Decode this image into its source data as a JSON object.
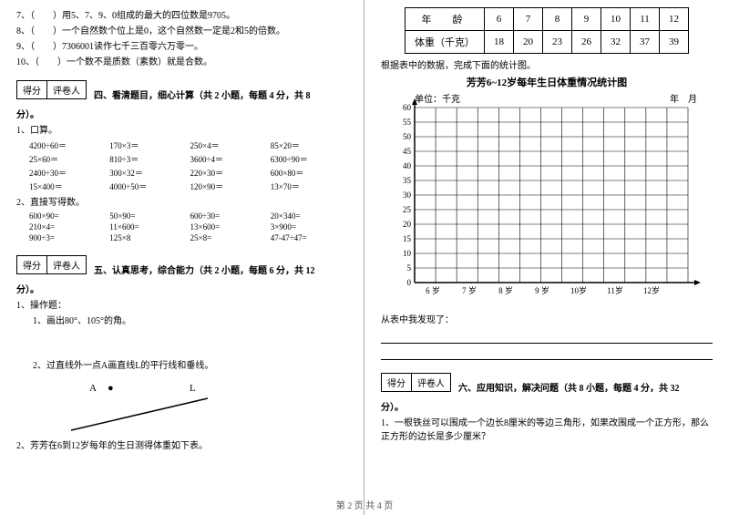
{
  "left": {
    "q7": "7、（　　）用5、7、9、0组成的最大的四位数是9705。",
    "q8": "8、（　　）一个自然数个位上是0，这个自然数一定是2和5的倍数。",
    "q9": "9、（　　）7306001读作七千三百零六万零一。",
    "q10": "10、（　　）一个数不是质数（素数）就是合数。",
    "score_a": "得分",
    "score_b": "评卷人",
    "sec4": "四、看清题目，细心计算（共 2 小题，每题 4 分，共 8",
    "sec4b": "分）。",
    "p1": "1、口算。",
    "calc1": [
      "4200÷60＝",
      "170×3＝",
      "250×4＝",
      "85×20＝",
      "25×60＝",
      "810÷3＝",
      "3600÷4＝",
      "6300÷90＝",
      "2400÷30＝",
      "300×32＝",
      "220×30＝",
      "600×80＝",
      "15×400＝",
      "4000÷50＝",
      "120×90＝",
      "13×70＝"
    ],
    "p2": "2、直接写得数。",
    "calc2": [
      "600×90=",
      "50×90=",
      "600÷30=",
      "20×340=",
      "210×4=",
      "11×600=",
      "13×600=",
      "3×900=",
      "900÷3=",
      "125×8",
      "25×8=",
      "47-47÷47="
    ],
    "sec5": "五、认真思考，综合能力（共 2 小题，每题 6 分，共 12",
    "sec5b": "分）。",
    "op": "1、操作题：",
    "op1": "1、画出80°、105°的角。",
    "op2": "2、过直线外一点A画直线L的平行线和垂线。",
    "labelA": "A",
    "labelDot": "●",
    "labelL": "L",
    "op3": "2、芳芳在6到12岁每年的生日测得体重如下表。"
  },
  "right": {
    "table": {
      "h1": "年　龄",
      "h2": "体重（千克）",
      "ages": [
        "6",
        "7",
        "8",
        "9",
        "10",
        "11",
        "12"
      ],
      "weights": [
        "18",
        "20",
        "23",
        "26",
        "32",
        "37",
        "39"
      ]
    },
    "note": "根据表中的数据，完成下面的统计图。",
    "chart_title": "芳芳6~12岁每年生日体重情况统计图",
    "unit": "单位：千克",
    "date": "年　月",
    "yticks": [
      "60",
      "55",
      "50",
      "45",
      "40",
      "35",
      "30",
      "25",
      "20",
      "15",
      "10",
      "5",
      "0"
    ],
    "xticks": [
      "6 岁",
      "7 岁",
      "8 岁",
      "9 岁",
      "10岁",
      "11岁",
      "12岁"
    ],
    "found": "从表中我发现了：",
    "score_a": "得分",
    "score_b": "评卷人",
    "sec6": "六、应用知识，解决问题（共 8 小题，每题 4 分，共 32",
    "sec6b": "分）。",
    "app1": "1、一根铁丝可以围成一个边长8厘米的等边三角形，如果改围成一个正方形，那么正方形的边长是多少厘米？"
  },
  "footer": "第 2 页 共 4 页",
  "chart_style": {
    "grid_color": "#000",
    "bg": "#fff",
    "cols": 13,
    "rows": 12
  }
}
